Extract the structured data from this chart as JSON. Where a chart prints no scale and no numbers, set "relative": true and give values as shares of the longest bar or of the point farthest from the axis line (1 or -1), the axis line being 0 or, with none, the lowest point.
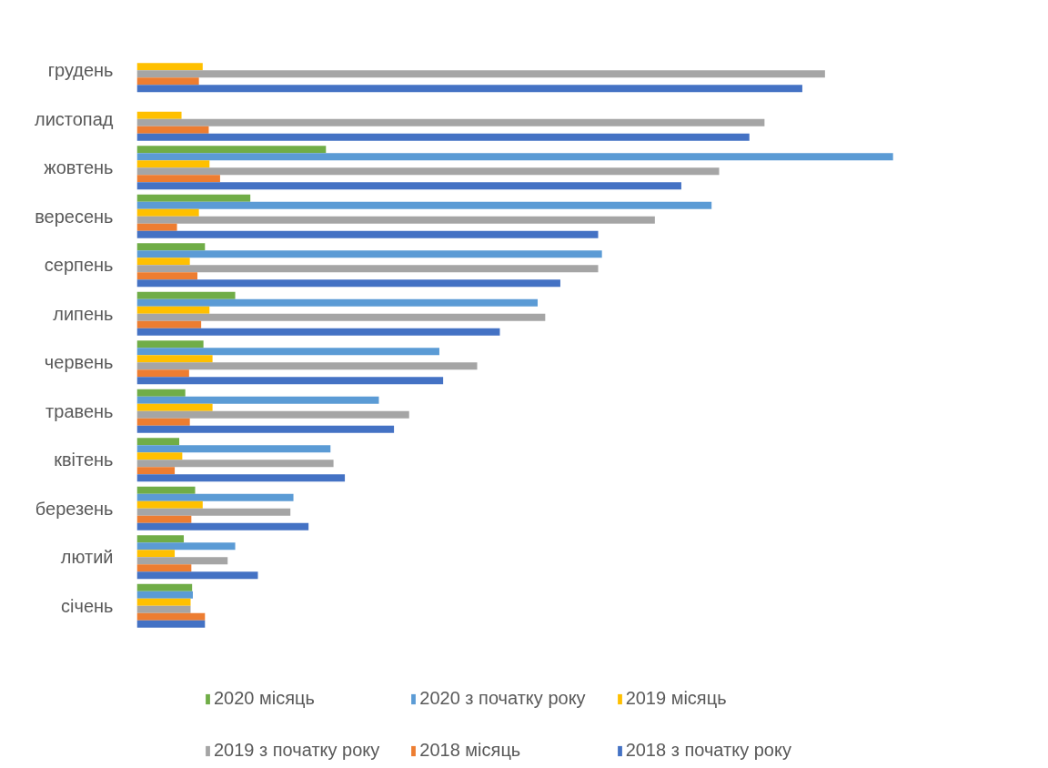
{
  "chart_data": {
    "type": "bar",
    "orientation": "horizontal",
    "relative": true,
    "legend": "bottom",
    "categories": [
      "грудень",
      "листопад",
      "жовтень",
      "вересень",
      "серпень",
      "липень",
      "червень",
      "травень",
      "квітень",
      "березень",
      "лютий",
      "січень"
    ],
    "series": [
      {
        "name": "2020 місяць",
        "color": "#70ad47",
        "values": [
          null,
          null,
          0.25,
          0.15,
          0.09,
          0.13,
          0.088,
          0.064,
          0.056,
          0.077,
          0.062,
          0.073
        ]
      },
      {
        "name": "2020 з початку року",
        "color": "#5b9bd5",
        "values": [
          null,
          null,
          1.0,
          0.76,
          0.615,
          0.53,
          0.4,
          0.32,
          0.256,
          0.207,
          0.13,
          0.074
        ]
      },
      {
        "name": "2019 місяць",
        "color": "#ffc000",
        "values": [
          0.087,
          0.059,
          0.096,
          0.082,
          0.07,
          0.096,
          0.1,
          0.1,
          0.06,
          0.087,
          0.05,
          0.071
        ]
      },
      {
        "name": "2019 з початку року",
        "color": "#a5a5a5",
        "values": [
          0.91,
          0.83,
          0.77,
          0.685,
          0.61,
          0.54,
          0.45,
          0.36,
          0.26,
          0.203,
          0.12,
          0.071
        ]
      },
      {
        "name": "2018 місяць",
        "color": "#ed7d31",
        "values": [
          0.082,
          0.095,
          0.11,
          0.053,
          0.08,
          0.085,
          0.069,
          0.07,
          0.05,
          0.072,
          0.072,
          0.09
        ]
      },
      {
        "name": "2018 з початку року",
        "color": "#4472c4",
        "values": [
          0.88,
          0.81,
          0.72,
          0.61,
          0.56,
          0.48,
          0.405,
          0.34,
          0.275,
          0.227,
          0.16,
          0.09
        ]
      }
    ]
  }
}
